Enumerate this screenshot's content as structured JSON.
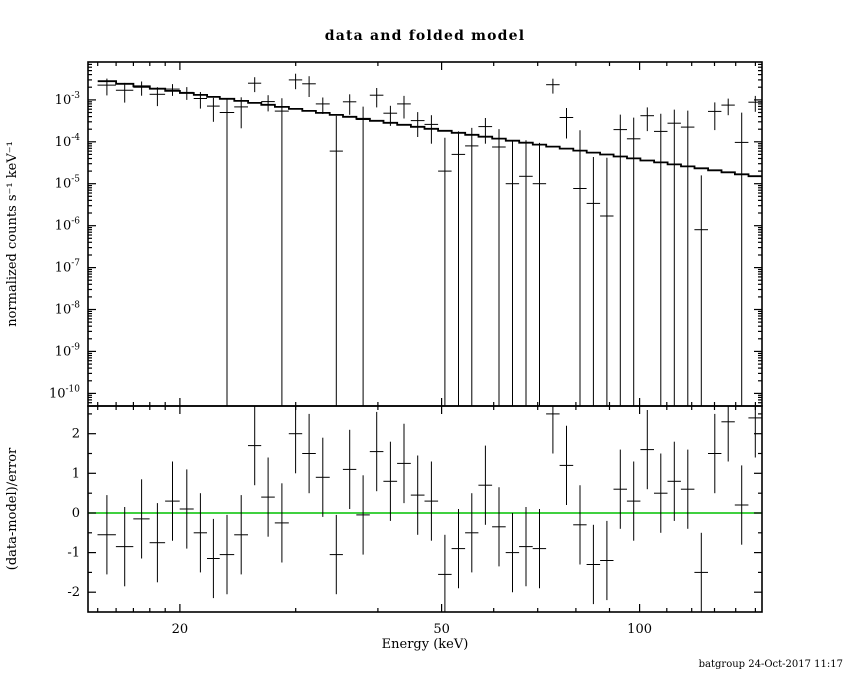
{
  "figure": {
    "title": "data and folded model",
    "xlabel": "Energy (keV)",
    "ylabel_top": "normalized counts s⁻¹ keV⁻¹",
    "ylabel_bottom": "(data-model)/error",
    "footer": "batgroup 24-Oct-2017 11:17"
  },
  "chart_data": [
    {
      "type": "scatter",
      "panel": "top",
      "title": "data and folded model",
      "ylabel": "normalized counts s⁻¹ keV⁻¹",
      "xscale": "log",
      "yscale": "log",
      "xlim": [
        14.5,
        153.5
      ],
      "ylim": [
        5e-11,
        0.008
      ],
      "grid": false,
      "legend": "none",
      "marker": "cross-with-error-bars",
      "color": "#000000",
      "y_tick_exponents": [
        -3,
        -4,
        -5,
        -6,
        -7,
        -8,
        -9,
        -10
      ],
      "x_ticks": {
        "major": [
          20,
          50,
          100
        ],
        "major_labels": [
          "20",
          "50",
          "100"
        ],
        "minor": [
          15,
          16,
          17,
          18,
          19,
          30,
          40,
          60,
          70,
          80,
          90,
          110,
          120,
          130,
          140,
          150
        ]
      },
      "bin_edges": [
        15.0,
        16.0,
        17.0,
        18.0,
        19.0,
        20.0,
        21.0,
        22.0,
        23.0,
        24.2,
        25.4,
        26.6,
        27.9,
        29.3,
        30.7,
        32.2,
        33.8,
        35.4,
        37.1,
        38.9,
        40.8,
        42.8,
        44.9,
        47.1,
        49.4,
        51.8,
        54.3,
        56.9,
        59.7,
        62.6,
        65.6,
        68.8,
        72.1,
        75.6,
        79.3,
        83.1,
        87.1,
        91.3,
        95.7,
        100.3,
        105.2,
        110.3,
        115.6,
        121.2,
        127.1,
        133.2,
        139.6,
        146.4,
        153.5
      ],
      "x": [
        15.49,
        16.49,
        17.49,
        18.49,
        19.49,
        20.49,
        21.49,
        22.49,
        23.59,
        24.79,
        25.99,
        27.24,
        28.59,
        29.99,
        31.44,
        32.99,
        34.59,
        36.24,
        37.99,
        39.84,
        41.79,
        43.84,
        45.99,
        48.24,
        50.59,
        53.04,
        55.58,
        58.28,
        61.13,
        64.08,
        67.18,
        70.43,
        73.83,
        77.42,
        81.17,
        85.08,
        89.18,
        93.48,
        97.97,
        102.72,
        107.72,
        112.92,
        118.37,
        124.12,
        130.12,
        136.37,
        142.97,
        149.92
      ],
      "xerr": [
        0.5,
        0.5,
        0.5,
        0.5,
        0.5,
        0.5,
        0.5,
        0.5,
        0.6,
        0.6,
        0.6,
        0.65,
        0.7,
        0.7,
        0.75,
        0.8,
        0.8,
        0.85,
        0.9,
        0.95,
        1.0,
        1.05,
        1.1,
        1.15,
        1.2,
        1.25,
        1.3,
        1.4,
        1.45,
        1.5,
        1.6,
        1.65,
        1.75,
        1.85,
        1.9,
        2.0,
        2.1,
        2.2,
        2.3,
        2.45,
        2.55,
        2.65,
        2.8,
        2.95,
        3.05,
        3.2,
        3.4,
        3.55
      ],
      "y": [
        0.00225,
        0.0017,
        0.002,
        0.00136,
        0.00181,
        0.00151,
        0.00108,
        0.00071,
        0.0005,
        0.00068,
        0.0025,
        0.00091,
        0.00054,
        0.003,
        0.00242,
        0.0008,
        6e-05,
        0.0009,
        0.00034,
        0.00129,
        0.00048,
        0.0008,
        0.00032,
        0.00026,
        2e-05,
        5e-05,
        8e-05,
        0.00023,
        7.5e-05,
        1e-05,
        1.5e-05,
        1e-05,
        0.0023,
        0.00038,
        7.7e-06,
        3.4e-06,
        1.7e-06,
        0.000195,
        0.000118,
        0.00042,
        0.000177,
        0.000277,
        0.000224,
        8e-07,
        0.00053,
        0.00075,
        9.7e-05,
        0.00088
      ],
      "yerr": [
        0.00097,
        0.00084,
        0.00074,
        0.00065,
        0.00057,
        0.00051,
        0.00046,
        0.00041,
        0.00053,
        0.00047,
        0.00097,
        0.00038,
        0.00055,
        0.0012,
        0.00125,
        0.00034,
        0.00036,
        0.00046,
        0.00035,
        0.00063,
        0.00024,
        0.00044,
        0.00019,
        0.00017,
        0.000105,
        0.000127,
        0.000134,
        0.00014,
        0.000126,
        9.6e-05,
        9.4e-05,
        8.4e-05,
        0.00089,
        0.00026,
        0.00018,
        4e-05,
        4e-05,
        0.00025,
        0.00026,
        0.00024,
        0.00029,
        0.00031,
        0.00033,
        1.5e-05,
        0.00034,
        0.00032,
        0.0004,
        0.00036
      ],
      "model": [
        0.00278,
        0.00241,
        0.00211,
        0.00185,
        0.00164,
        0.00146,
        0.00131,
        0.00118,
        0.00106,
        0.000944,
        0.000847,
        0.000761,
        0.000681,
        0.00061,
        0.000547,
        0.00049,
        0.000439,
        0.000394,
        0.000354,
        0.000317,
        0.000284,
        0.000254,
        0.000228,
        0.000204,
        0.000183,
        0.000164,
        0.000147,
        0.000132,
        0.000119,
        0.000106,
        9.53e-05,
        8.55e-05,
        7.67e-05,
        6.88e-05,
        6.17e-05,
        5.54e-05,
        4.97e-05,
        4.46e-05,
        4.01e-05,
        3.59e-05,
        3.22e-05,
        2.89e-05,
        2.59e-05,
        2.33e-05,
        2.09e-05,
        1.87e-05,
        1.68e-05,
        1.51e-05
      ]
    },
    {
      "type": "scatter",
      "panel": "bottom",
      "ylabel": "(data-model)/error",
      "xlabel": "Energy (keV)",
      "xscale": "log",
      "yscale": "linear",
      "xlim": [
        14.5,
        153.5
      ],
      "ylim": [
        -2.5,
        2.7
      ],
      "grid": false,
      "legend": "none",
      "marker": "cross-with-error-bars",
      "color": "#000000",
      "zero_line_color": "#00c000",
      "y_ticks": {
        "major": [
          -2,
          -1,
          0,
          1,
          2
        ],
        "minor": [
          -1.5,
          -0.5,
          0.5,
          1.5,
          2.5
        ]
      },
      "x": [
        15.49,
        16.49,
        17.49,
        18.49,
        19.49,
        20.49,
        21.49,
        22.49,
        23.59,
        24.79,
        25.99,
        27.24,
        28.59,
        29.99,
        31.44,
        32.99,
        34.59,
        36.24,
        37.99,
        39.84,
        41.79,
        43.84,
        45.99,
        48.24,
        50.59,
        53.04,
        55.58,
        58.28,
        61.13,
        64.08,
        67.18,
        70.43,
        73.83,
        77.42,
        81.17,
        85.08,
        89.18,
        93.48,
        97.97,
        102.72,
        107.72,
        112.92,
        118.37,
        124.12,
        130.12,
        136.37,
        142.97,
        149.92
      ],
      "xerr": [
        0.5,
        0.5,
        0.5,
        0.5,
        0.5,
        0.5,
        0.5,
        0.5,
        0.6,
        0.6,
        0.6,
        0.65,
        0.7,
        0.7,
        0.75,
        0.8,
        0.8,
        0.85,
        0.9,
        0.95,
        1.0,
        1.05,
        1.1,
        1.15,
        1.2,
        1.25,
        1.3,
        1.4,
        1.45,
        1.5,
        1.6,
        1.65,
        1.75,
        1.85,
        1.9,
        2.0,
        2.1,
        2.2,
        2.3,
        2.45,
        2.55,
        2.65,
        2.8,
        2.95,
        3.05,
        3.2,
        3.4,
        3.55
      ],
      "y": [
        -0.55,
        -0.85,
        -0.15,
        -0.75,
        0.3,
        0.1,
        -0.5,
        -1.15,
        -1.05,
        -0.55,
        1.7,
        0.4,
        -0.25,
        2.0,
        1.5,
        0.9,
        -1.05,
        1.1,
        -0.05,
        1.55,
        0.8,
        1.25,
        0.45,
        0.3,
        -1.55,
        -0.9,
        -0.5,
        0.7,
        -0.35,
        -1.0,
        -0.85,
        -0.9,
        2.5,
        1.2,
        -0.3,
        -1.3,
        -1.2,
        0.6,
        0.3,
        1.6,
        0.5,
        0.8,
        0.6,
        -1.5,
        1.5,
        2.3,
        0.2,
        2.4
      ],
      "yerr": 1.0
    }
  ]
}
